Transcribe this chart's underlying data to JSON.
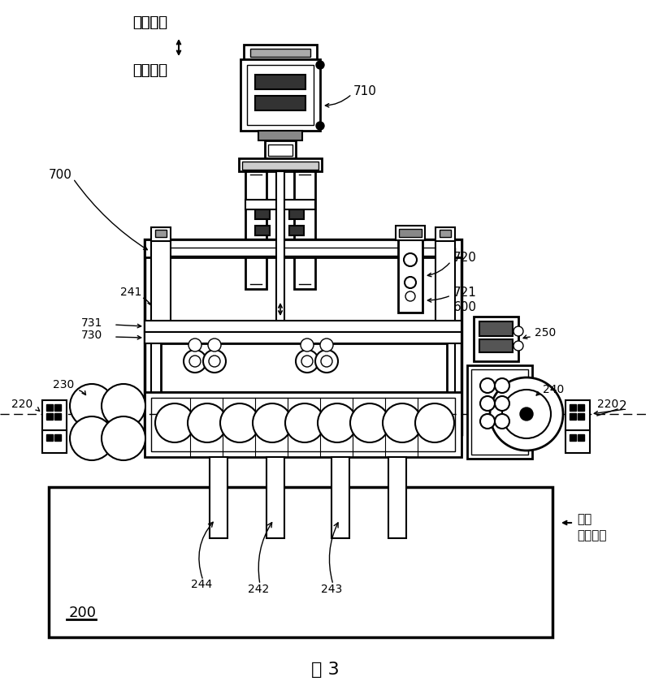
{
  "figsize": [
    8.0,
    8.5
  ],
  "dpi": 100,
  "bg": "#ffffff",
  "labels": {
    "up": "向上方向",
    "down": "向下方向",
    "transport": "工件\n输送方向",
    "fig": "图 3",
    "n200": "200",
    "n700": "700",
    "n710": "710",
    "n720": "720",
    "n721": "721",
    "n600": "600",
    "n250": "250",
    "n240": "240",
    "n241": "241",
    "n242": "242",
    "n243": "243",
    "n244": "244",
    "n220": "220",
    "n230": "230",
    "n730": "730",
    "n731": "731",
    "n2": "2"
  }
}
